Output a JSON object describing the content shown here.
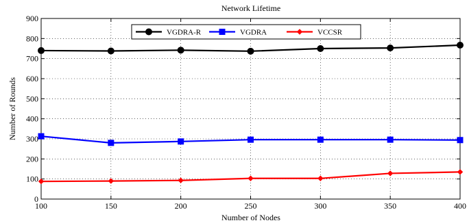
{
  "chart_data": {
    "type": "line",
    "title": "Network Lifetime",
    "xlabel": "Number of Nodes",
    "ylabel": "Number of Rounds",
    "x": [
      100,
      150,
      200,
      250,
      300,
      350,
      400
    ],
    "xlim": [
      100,
      400
    ],
    "ylim": [
      0,
      900
    ],
    "xticks": [
      "100",
      "150",
      "200",
      "250",
      "300",
      "350",
      "400"
    ],
    "yticks": [
      "0",
      "100",
      "200",
      "300",
      "400",
      "500",
      "600",
      "700",
      "800",
      "900"
    ],
    "grid": true,
    "legend_position": "top-center",
    "series": [
      {
        "name": "VGDRA-R",
        "color": "#000000",
        "marker": "circle",
        "values": [
          740,
          738,
          742,
          737,
          750,
          753,
          767
        ]
      },
      {
        "name": "VGDRA",
        "color": "#0000ff",
        "marker": "square",
        "values": [
          313,
          280,
          287,
          296,
          296,
          296,
          294
        ]
      },
      {
        "name": "VCCSR",
        "color": "#ff0000",
        "marker": "diamond",
        "values": [
          88,
          90,
          93,
          103,
          103,
          128,
          135
        ]
      }
    ]
  }
}
